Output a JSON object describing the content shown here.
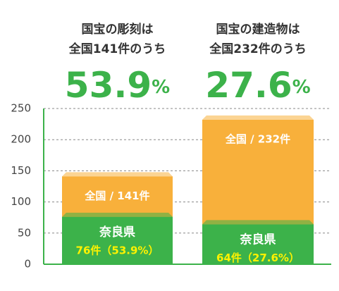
{
  "chart_data": {
    "type": "bar",
    "categories": [
      [
        "国宝の彫刻は",
        "全国141件のうち"
      ],
      [
        "国宝の建造物は",
        "全国232件のうち"
      ]
    ],
    "highlights": [
      {
        "value": 53.9,
        "unit": "%"
      },
      {
        "value": 27.6,
        "unit": "%"
      }
    ],
    "highlight_color": "#3cb24a",
    "series": [
      {
        "color": "#f8b03b",
        "values": [
          141,
          232
        ],
        "value_labels": [
          "全国 / 141件",
          "全国 / 232件"
        ]
      },
      {
        "name": "奈良県",
        "color": "#3cb24a",
        "values": [
          76,
          64
        ],
        "value_labels": [
          "76件（53.9%）",
          "64件（27.6%）"
        ]
      }
    ],
    "ylim": [
      0,
      250
    ],
    "yticks": [
      0,
      50,
      100,
      150,
      200,
      250
    ],
    "grid": true
  }
}
